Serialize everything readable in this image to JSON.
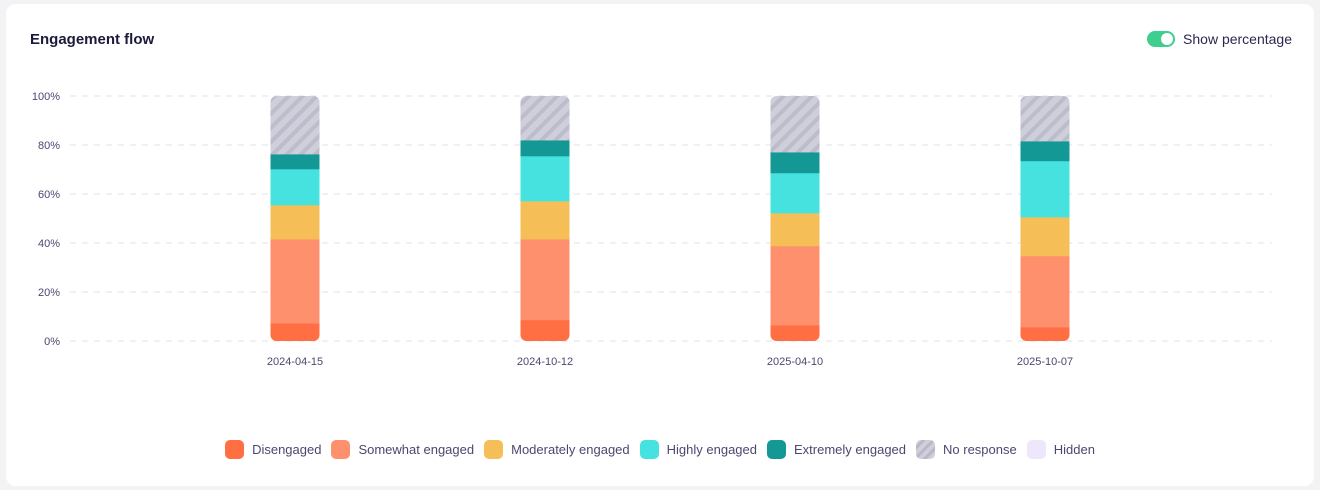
{
  "title": "Engagement flow",
  "toggle": {
    "label": "Show percentage",
    "on": true
  },
  "chart_data": {
    "type": "bar",
    "stacked": true,
    "categories": [
      "2024-04-15",
      "2024-10-12",
      "2025-04-10",
      "2025-10-07"
    ],
    "ylim": [
      0,
      100
    ],
    "yticks": [
      "0%",
      "20%",
      "40%",
      "60%",
      "80%",
      "100%"
    ],
    "series": [
      {
        "name": "Disengaged",
        "color": "#ff6f43",
        "values": [
          7.3,
          8.6,
          6.5,
          5.7
        ]
      },
      {
        "name": "Somewhat engaged",
        "color": "#ff906d",
        "values": [
          34.3,
          33,
          32.3,
          29
        ]
      },
      {
        "name": "Moderately engaged",
        "color": "#f6be57",
        "values": [
          13.9,
          15.5,
          13.4,
          15.9
        ]
      },
      {
        "name": "Highly engaged",
        "color": "#45e2e0",
        "values": [
          14.7,
          18.4,
          16.4,
          22.9
        ]
      },
      {
        "name": "Extremely engaged",
        "color": "#139895",
        "values": [
          6.1,
          6.5,
          8.5,
          8.1
        ]
      },
      {
        "name": "No response",
        "color": "#cfcedb",
        "values": [
          23.7,
          18,
          22.9,
          18.4
        ]
      },
      {
        "name": "Hidden",
        "color": "#eee6fb",
        "values": [
          0,
          0,
          0,
          0
        ]
      }
    ],
    "legend": "bottom",
    "grid": true
  }
}
